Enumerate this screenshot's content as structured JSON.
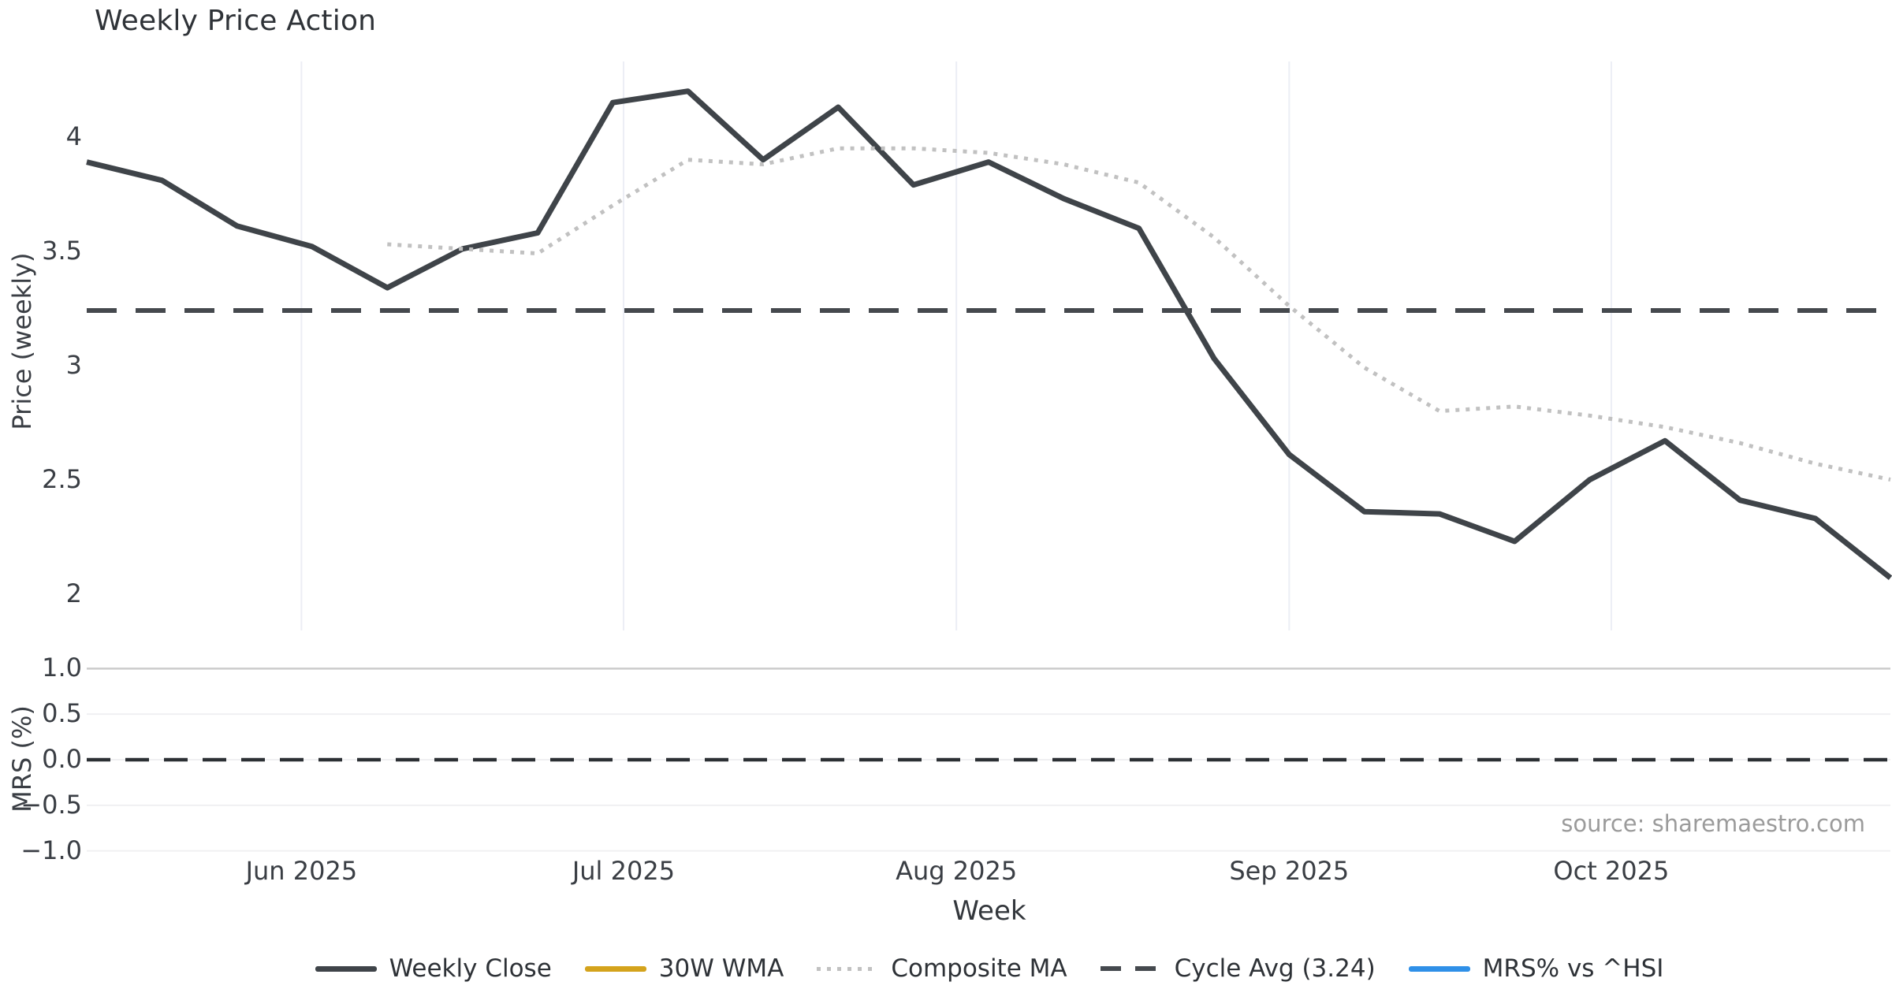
{
  "title": "Weekly Price Action",
  "source": "source: sharemaestro.com",
  "colors": {
    "weekly_close": "#3f4449",
    "wma_30w": "#d4a31c",
    "composite_ma": "#c1c1c1",
    "cycle_avg": "#45494e",
    "mrs_line": "#2f90e8",
    "zero_line": "#2c3034",
    "month_gridline": "#eceef5",
    "mrs_gridline": "#f0f0f2",
    "mrs_gridline_top": "#cbcbcb",
    "tick_text": "#3a3e44"
  },
  "price_panel": {
    "ylabel": "Price (weekly)",
    "y_ticks": [
      {
        "label": "4",
        "value": 4
      },
      {
        "label": "3.5",
        "value": 3.5
      },
      {
        "label": "3",
        "value": 3
      },
      {
        "label": "2.5",
        "value": 2.5
      },
      {
        "label": "2",
        "value": 2
      }
    ]
  },
  "mrs_panel": {
    "ylabel": "MRS (%)",
    "y_ticks": [
      {
        "label": "1.0",
        "value": 1.0
      },
      {
        "label": "0.5",
        "value": 0.5
      },
      {
        "label": "0.0",
        "value": 0.0
      },
      {
        "label": "−0.5",
        "value": -0.5
      },
      {
        "label": "−1.0",
        "value": -1.0
      }
    ]
  },
  "x_axis": {
    "label": "Week",
    "ticks": [
      {
        "label": "Jun 2025",
        "date": "2025-06-01"
      },
      {
        "label": "Jul 2025",
        "date": "2025-07-01"
      },
      {
        "label": "Aug 2025",
        "date": "2025-08-01"
      },
      {
        "label": "Sep 2025",
        "date": "2025-09-01"
      },
      {
        "label": "Oct 2025",
        "date": "2025-10-01"
      }
    ]
  },
  "legend": [
    {
      "label": "Weekly Close",
      "swatch": "solid",
      "color": "#3f4449"
    },
    {
      "label": "30W WMA",
      "swatch": "solid",
      "color": "#d4a31c"
    },
    {
      "label": "Composite MA",
      "swatch": "dotted",
      "color": "#c1c1c1"
    },
    {
      "label": "Cycle Avg (3.24)",
      "swatch": "dashed",
      "color": "#45494e"
    },
    {
      "label": "MRS% vs ^HSI",
      "swatch": "solid",
      "color": "#2f90e8"
    }
  ],
  "chart_data": [
    {
      "type": "line",
      "panel": "price",
      "title": "Weekly Price Action",
      "xlabel": "Week",
      "ylabel": "Price (weekly)",
      "ylim": [
        1.84,
        4.33
      ],
      "x_tick_labels": [
        "Jun 2025",
        "Jul 2025",
        "Aug 2025",
        "Sep 2025",
        "Oct 2025"
      ],
      "y_tick_labels": [
        "4",
        "3.5",
        "3",
        "2.5",
        "2"
      ],
      "grid": "vertical month gridlines only",
      "legend_position": "bottom center",
      "x": [
        "2025-05-12",
        "2025-05-19",
        "2025-05-26",
        "2025-06-02",
        "2025-06-09",
        "2025-06-16",
        "2025-06-23",
        "2025-06-30",
        "2025-07-07",
        "2025-07-14",
        "2025-07-21",
        "2025-07-28",
        "2025-08-04",
        "2025-08-11",
        "2025-08-18",
        "2025-08-25",
        "2025-09-01",
        "2025-09-08",
        "2025-09-15",
        "2025-09-22",
        "2025-09-29",
        "2025-10-06",
        "2025-10-13",
        "2025-10-20",
        "2025-10-27"
      ],
      "series": [
        {
          "name": "Weekly Close",
          "style": "solid",
          "color": "#3f4449",
          "width": 7,
          "values": [
            3.89,
            3.81,
            3.61,
            3.52,
            3.34,
            3.51,
            3.58,
            4.15,
            4.2,
            3.9,
            4.13,
            3.79,
            3.89,
            3.73,
            3.6,
            3.03,
            2.61,
            2.36,
            2.35,
            2.23,
            2.5,
            2.67,
            2.41,
            2.33,
            2.07
          ]
        },
        {
          "name": "30W WMA",
          "style": "solid",
          "color": "#d4a31c",
          "width": 7,
          "values": [
            null,
            null,
            null,
            null,
            null,
            null,
            null,
            null,
            null,
            null,
            null,
            null,
            null,
            null,
            null,
            null,
            null,
            null,
            null,
            null,
            null,
            null,
            null,
            null,
            null
          ],
          "note": "in legend but no visible data in plotted range"
        },
        {
          "name": "Composite MA",
          "style": "dotted",
          "color": "#c1c1c1",
          "width": 5,
          "values": [
            null,
            null,
            null,
            null,
            3.53,
            3.51,
            3.49,
            3.7,
            3.9,
            3.88,
            3.95,
            3.95,
            3.93,
            3.88,
            3.8,
            3.56,
            3.26,
            2.99,
            2.8,
            2.82,
            2.78,
            2.73,
            2.66,
            2.57,
            2.5
          ]
        },
        {
          "name": "Cycle Avg (3.24)",
          "style": "dashed",
          "color": "#45494e",
          "width": 6,
          "constant": 3.24
        }
      ]
    },
    {
      "type": "line",
      "panel": "mrs",
      "ylabel": "MRS (%)",
      "ylim": [
        -1.15,
        1.15
      ],
      "y_tick_labels": [
        "1.0",
        "0.5",
        "0.0",
        "−0.5",
        "−1.0"
      ],
      "grid": "horizontal gridlines at 1.0, 0.5, 0.0, -0.5, -1.0",
      "series": [
        {
          "name": "MRS% vs ^HSI",
          "style": "solid",
          "color": "#2f90e8",
          "width": 5,
          "values": [
            null,
            null,
            null,
            null,
            null,
            null,
            null,
            null,
            null,
            null,
            null,
            null,
            null,
            null,
            null,
            null,
            null,
            null,
            null,
            null,
            null,
            null,
            null,
            null,
            null
          ],
          "note": "in legend but no visible data in plotted range"
        },
        {
          "name": "zero line",
          "style": "dashed",
          "color": "#2c3034",
          "width": 4.5,
          "constant": 0.0
        }
      ]
    }
  ]
}
